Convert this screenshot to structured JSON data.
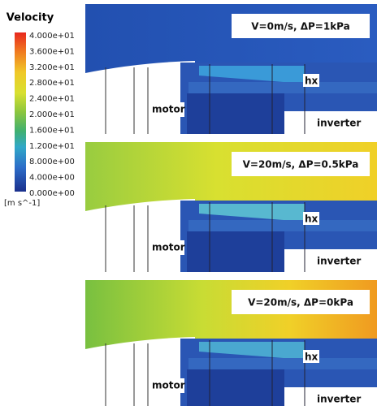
{
  "legend": {
    "title": "Velocity",
    "ticks": [
      "4.000e+01",
      "3.600e+01",
      "3.200e+01",
      "2.800e+01",
      "2.400e+01",
      "2.000e+01",
      "1.600e+01",
      "1.200e+01",
      "8.000e+00",
      "4.000e+00",
      "0.000e+00"
    ],
    "unit": "[m s^-1]"
  },
  "panels": [
    {
      "condition": "V=0m/s, ΔP=1kPa",
      "labels": [
        "hx",
        "motor",
        "inverter"
      ]
    },
    {
      "condition": "V=20m/s, ΔP=0.5kPa",
      "labels": [
        "hx",
        "motor",
        "inverter"
      ]
    },
    {
      "condition": "V=20m/s, ΔP=0kPa",
      "labels": [
        "hx",
        "motor",
        "inverter"
      ]
    }
  ]
}
